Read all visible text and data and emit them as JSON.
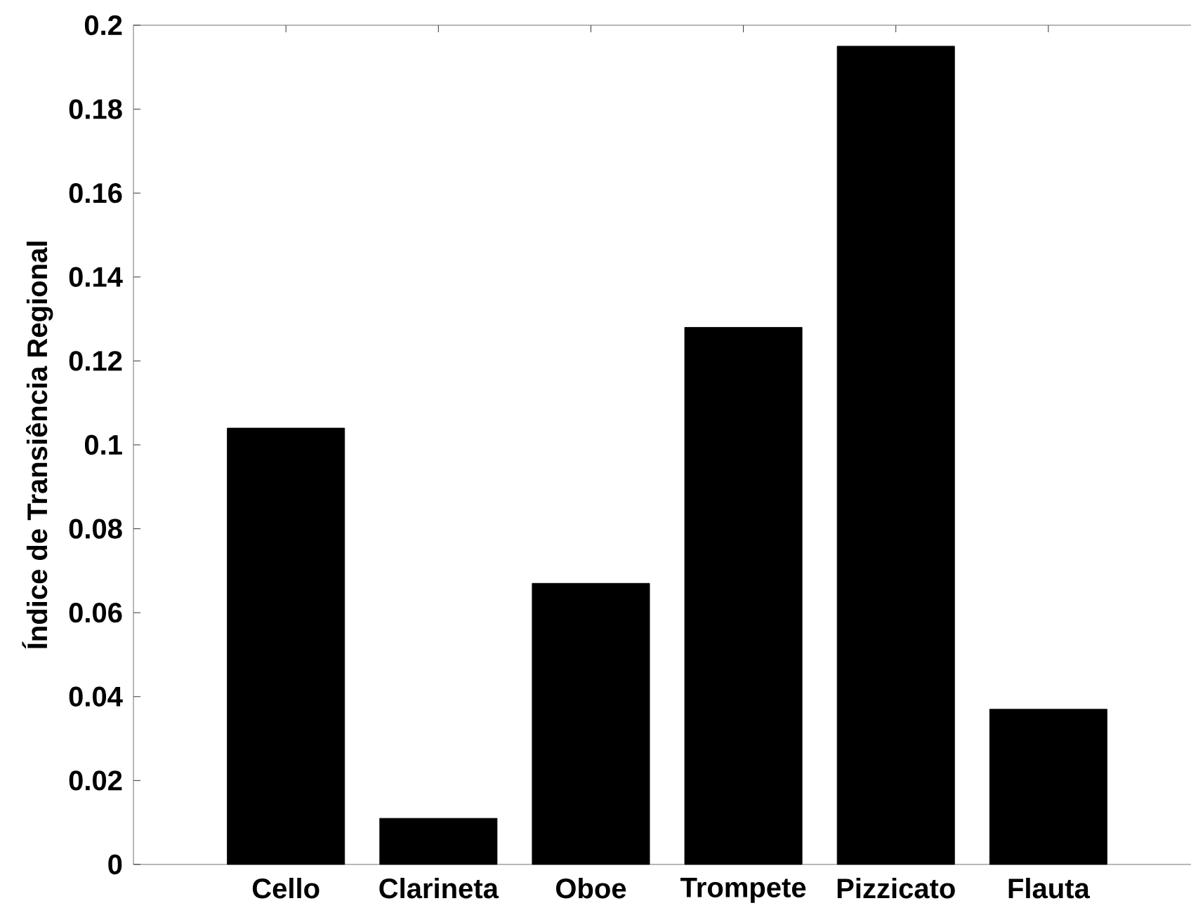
{
  "chart_data": {
    "type": "bar",
    "ylabel": "Índice de Transiência Regional",
    "categories": [
      "Cello",
      "Clarineta",
      "Oboe",
      "Trompete",
      "Pizzicato",
      "Flauta"
    ],
    "values": [
      0.104,
      0.011,
      0.067,
      0.128,
      0.195,
      0.037
    ],
    "color": "#000000",
    "ylim": [
      0,
      0.2
    ],
    "yticks": [
      0,
      0.02,
      0.04,
      0.06,
      0.08,
      0.1,
      0.12,
      0.14,
      0.16,
      0.18,
      0.2
    ],
    "grid": false
  }
}
